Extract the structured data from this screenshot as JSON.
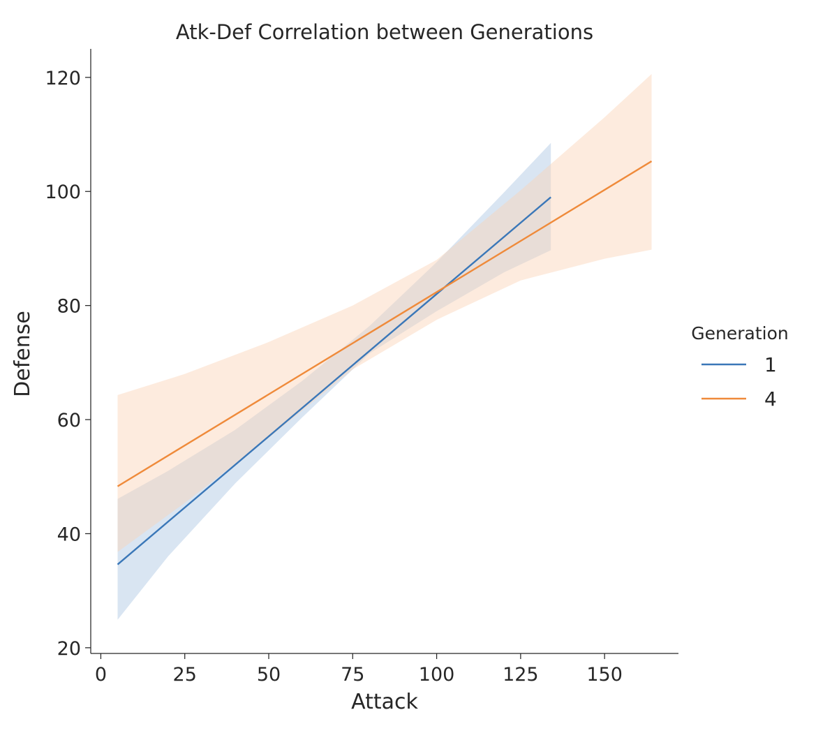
{
  "chart_data": {
    "type": "line",
    "title": "Atk-Def Correlation between Generations",
    "xlabel": "Attack",
    "ylabel": "Defense",
    "xlim": [
      -3,
      172
    ],
    "ylim": [
      19,
      125
    ],
    "xticks": [
      0,
      25,
      50,
      75,
      100,
      125,
      150
    ],
    "yticks": [
      20,
      40,
      60,
      80,
      100,
      120
    ],
    "grid": false,
    "legend": {
      "title": "Generation",
      "placement": "right"
    },
    "series": [
      {
        "name": "1",
        "color": "#3a77b8",
        "band_color": "#aac6e3",
        "x": [
          5,
          134
        ],
        "y": [
          34.6,
          99.0
        ],
        "ci_x": [
          5,
          20,
          40,
          60,
          80,
          100,
          120,
          134
        ],
        "ci_upper": [
          46.1,
          51.0,
          58.2,
          66.8,
          76.4,
          87.6,
          99.8,
          108.5
        ],
        "ci_lower": [
          24.9,
          36.0,
          48.8,
          60.4,
          71.6,
          79.0,
          85.8,
          89.7
        ]
      },
      {
        "name": "4",
        "color": "#ef8a3a",
        "band_color": "#fbd3b5",
        "x": [
          5,
          164
        ],
        "y": [
          48.3,
          105.3
        ],
        "ci_x": [
          5,
          25,
          50,
          75,
          100,
          125,
          150,
          164
        ],
        "ci_upper": [
          64.3,
          68.0,
          73.6,
          80.0,
          88.0,
          100.2,
          113.0,
          120.6
        ],
        "ci_lower": [
          36.8,
          45.4,
          56.8,
          68.8,
          77.5,
          84.4,
          88.2,
          89.8
        ]
      }
    ]
  }
}
